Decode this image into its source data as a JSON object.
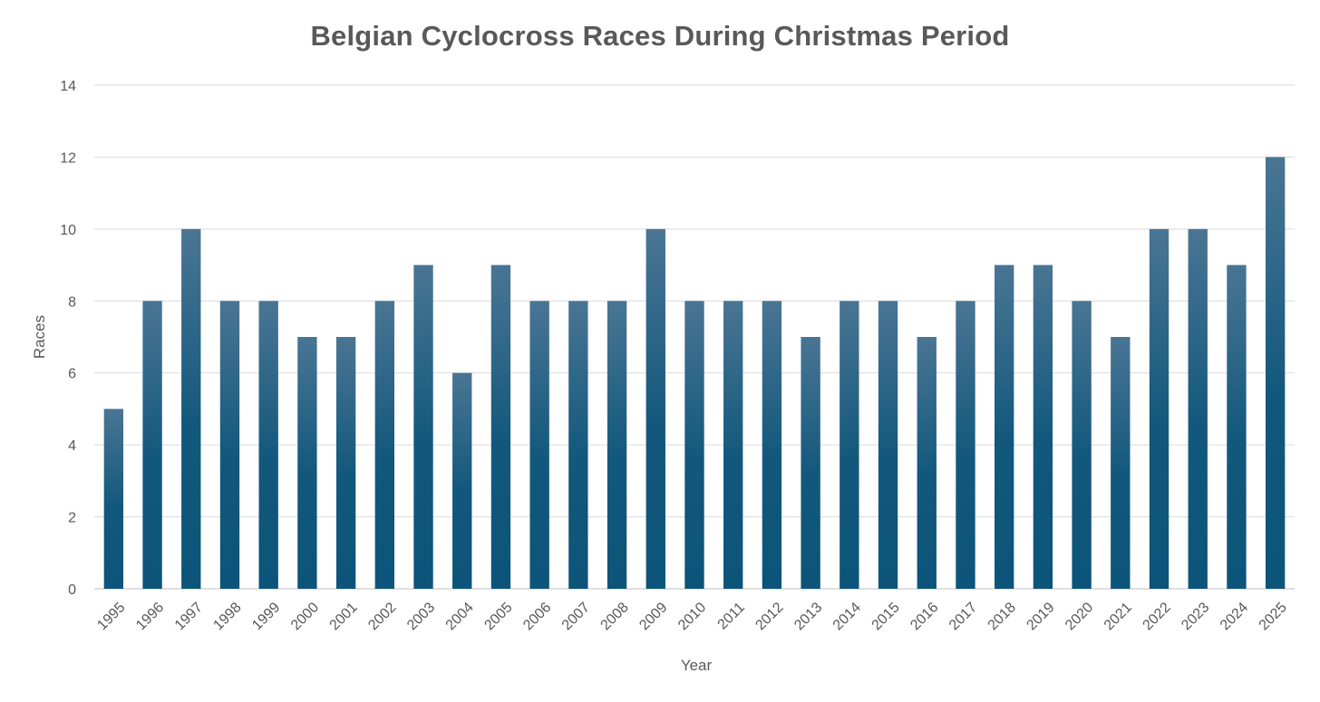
{
  "chart_data": {
    "type": "bar",
    "title": "Belgian Cyclocross Races During Christmas Period",
    "xlabel": "Year",
    "ylabel": "Races",
    "ylim": [
      0,
      14
    ],
    "yticks": [
      0,
      2,
      4,
      6,
      8,
      10,
      12,
      14
    ],
    "grid": true,
    "legend": "none",
    "bar_color_top": "#4a7594",
    "bar_color_bottom": "#0c5479",
    "categories": [
      "1995",
      "1996",
      "1997",
      "1998",
      "1999",
      "2000",
      "2001",
      "2002",
      "2003",
      "2004",
      "2005",
      "2006",
      "2007",
      "2008",
      "2009",
      "2010",
      "2011",
      "2012",
      "2013",
      "2014",
      "2015",
      "2016",
      "2017",
      "2018",
      "2019",
      "2020",
      "2021",
      "2022",
      "2023",
      "2024",
      "2025"
    ],
    "values": [
      5,
      8,
      10,
      8,
      8,
      7,
      7,
      8,
      9,
      6,
      9,
      8,
      8,
      8,
      10,
      8,
      8,
      8,
      7,
      8,
      8,
      7,
      8,
      9,
      9,
      8,
      7,
      10,
      10,
      9,
      12
    ]
  }
}
